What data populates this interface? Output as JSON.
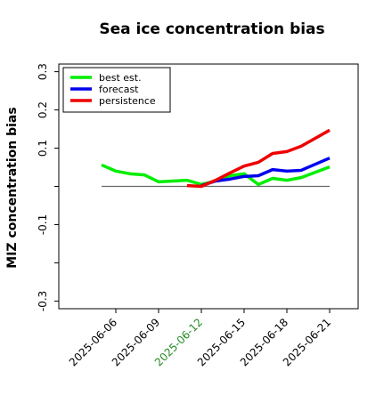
{
  "chart_data": {
    "type": "line",
    "title": "Sea ice concentration bias",
    "y_label": "MIZ concentration bias",
    "x": [
      "2025-06-05",
      "2025-06-06",
      "2025-06-07",
      "2025-06-08",
      "2025-06-09",
      "2025-06-10",
      "2025-06-11",
      "2025-06-12",
      "2025-06-13",
      "2025-06-14",
      "2025-06-15",
      "2025-06-16",
      "2025-06-17",
      "2025-06-18",
      "2025-06-19",
      "2025-06-20",
      "2025-06-21"
    ],
    "series": [
      {
        "name": "best est.",
        "color": "#00ee00",
        "values": [
          0.056,
          0.04,
          0.033,
          0.03,
          0.012,
          0.014,
          0.016,
          0.005,
          0.014,
          0.028,
          0.033,
          0.005,
          0.021,
          0.016,
          0.023,
          0.037,
          0.051
        ]
      },
      {
        "name": "forecast",
        "color": "#0000ee",
        "values": [
          null,
          null,
          null,
          null,
          null,
          null,
          null,
          0.002,
          0.014,
          0.019,
          0.026,
          0.028,
          0.044,
          0.04,
          0.042,
          0.058,
          0.074
        ]
      },
      {
        "name": "persistence",
        "color": "#ee0000",
        "values": [
          null,
          null,
          null,
          null,
          null,
          null,
          0.002,
          0,
          0.016,
          0.035,
          0.053,
          0.063,
          0.086,
          0.091,
          0.105,
          0.126,
          0.147
        ]
      }
    ],
    "xlim": [
      "2025-06-02",
      "2025-06-23"
    ],
    "xticks": [
      "2025-06-06",
      "2025-06-09",
      "2025-06-12",
      "2025-06-15",
      "2025-06-18",
      "2025-06-21"
    ],
    "highlight_xtick": "2025-06-12",
    "highlight_color": "#228b22",
    "ylim": [
      -0.32,
      0.32
    ],
    "yticks": [
      0.3,
      0.2,
      0.1,
      {
        "value": 0,
        "label": null
      },
      -0.1,
      {
        "value": -0.2,
        "label": null
      },
      -0.3
    ],
    "hline": 0,
    "legend": "upper left",
    "grid": false
  }
}
